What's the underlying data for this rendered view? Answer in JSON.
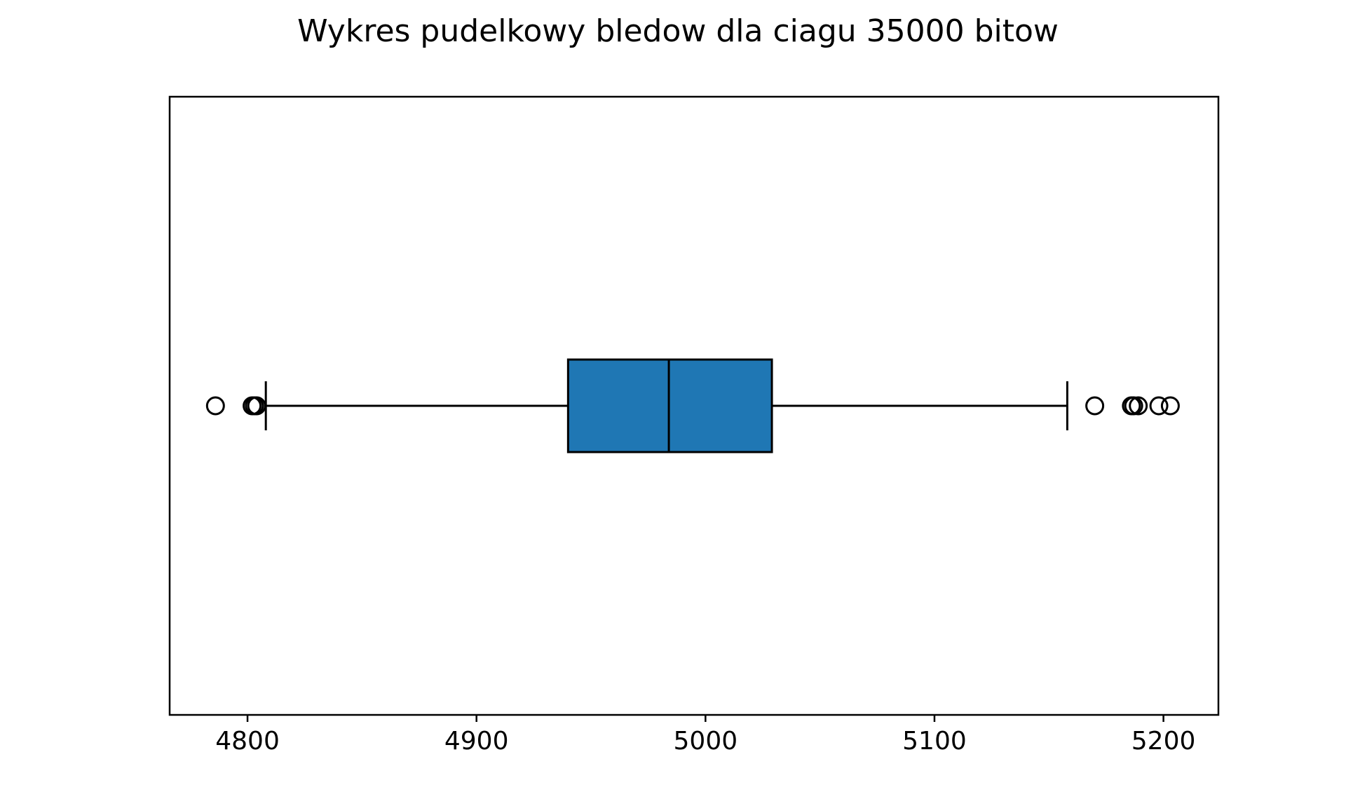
{
  "chart_data": {
    "type": "boxplot",
    "orientation": "horizontal",
    "title": "Wykres pudelkowy bledow dla ciagu 35000 bitow",
    "xlabel": "",
    "ylabel": "",
    "xlim": [
      4766,
      5224
    ],
    "xticks": [
      4800,
      4900,
      5000,
      5100,
      5200
    ],
    "xtick_labels": [
      "4800",
      "4900",
      "5000",
      "5100",
      "5200"
    ],
    "grid": false,
    "legend": "none",
    "colors": {
      "box_fill": "#1f77b4",
      "line": "#000000",
      "background": "#ffffff"
    },
    "box": {
      "whisker_low": 4808,
      "q1": 4940,
      "median": 4984,
      "q3": 5029,
      "whisker_high": 5158
    },
    "outliers": [
      4786,
      4802,
      4803,
      4804,
      5170,
      5186,
      5187,
      5189,
      5198,
      5203
    ]
  }
}
